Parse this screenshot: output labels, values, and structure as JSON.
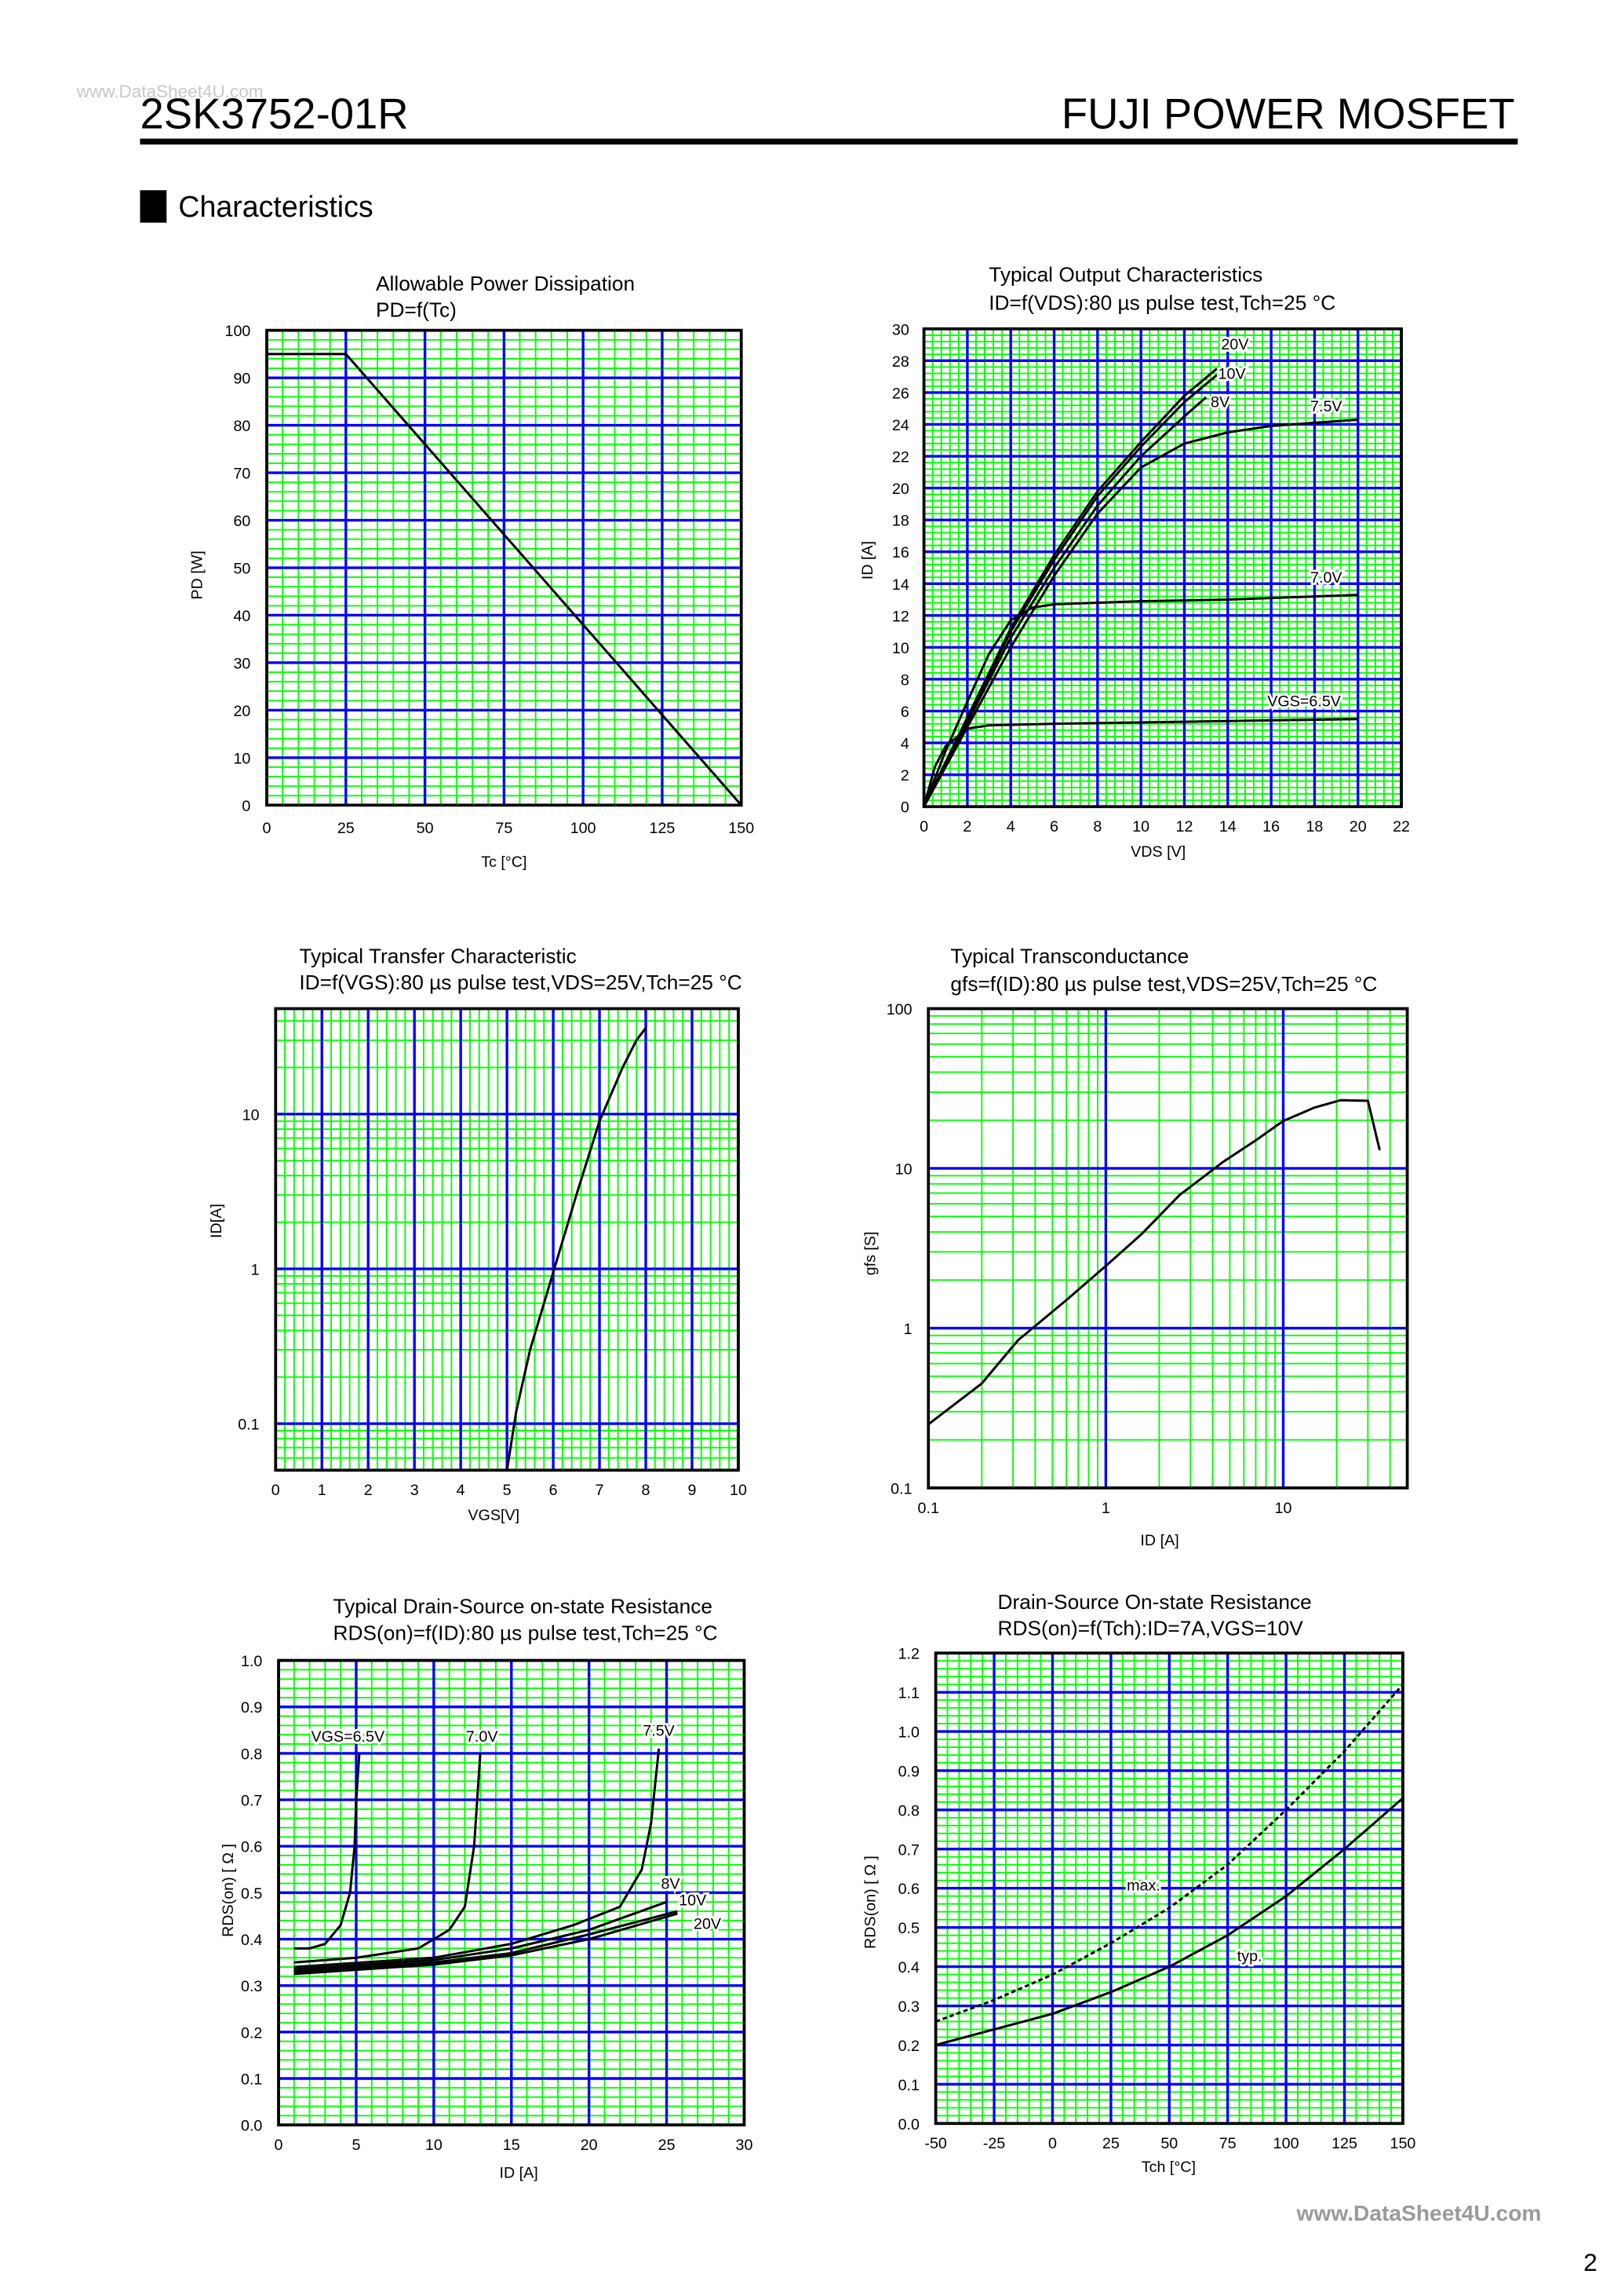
{
  "header": {
    "watermark": "www.DataSheet4U.com",
    "part_number": "2SK3752-01R",
    "product_type": "FUJI POWER MOSFET",
    "section_title": "Characteristics"
  },
  "footer": {
    "watermark": "www.DataSheet4U.com",
    "page_number": "2"
  },
  "colors": {
    "major_grid": "#0000ff",
    "minor_grid": "#00ff00",
    "curve": "#000000"
  },
  "chart_data": [
    {
      "type": "line",
      "title": [
        "Allowable Power Dissipation",
        "PD=f(Tc)"
      ],
      "xlabel": "Tc [°C]",
      "ylabel": "PD [W]",
      "xscale": "linear",
      "yscale": "linear",
      "xlim": [
        0,
        150
      ],
      "ylim": [
        0,
        100
      ],
      "xticks": [
        0,
        25,
        50,
        75,
        100,
        125,
        150
      ],
      "yticks": [
        0,
        10,
        20,
        30,
        40,
        50,
        60,
        70,
        80,
        90,
        100
      ],
      "grid": true,
      "series": [
        {
          "name": "PD",
          "label": "",
          "dashed": false,
          "points": [
            [
              0,
              95
            ],
            [
              25,
              95
            ],
            [
              150,
              0
            ]
          ]
        }
      ]
    },
    {
      "type": "line",
      "title": [
        "Typical Output Characteristics",
        "ID=f(VDS):80 µs pulse test,Tch=25 °C"
      ],
      "xlabel": "VDS [V]",
      "ylabel": "ID [A]",
      "xscale": "linear",
      "yscale": "linear",
      "xlim": [
        0,
        22
      ],
      "ylim": [
        0,
        30
      ],
      "xticks": [
        0,
        2,
        4,
        6,
        8,
        10,
        12,
        14,
        16,
        18,
        20,
        22
      ],
      "yticks": [
        0,
        2,
        4,
        6,
        8,
        10,
        12,
        14,
        16,
        18,
        20,
        22,
        24,
        26,
        28,
        30
      ],
      "grid": true,
      "series": [
        {
          "name": "VGS=20V",
          "label": "20V",
          "dashed": false,
          "points": [
            [
              0,
              0
            ],
            [
              2,
              5.6
            ],
            [
              4,
              11.2
            ],
            [
              6,
              15.8
            ],
            [
              8,
              19.8
            ],
            [
              10,
              22.9
            ],
            [
              12,
              25.8
            ],
            [
              13.5,
              27.5
            ]
          ]
        },
        {
          "name": "VGS=10V",
          "label": "10V",
          "dashed": false,
          "points": [
            [
              0,
              0
            ],
            [
              2,
              5.5
            ],
            [
              4,
              11
            ],
            [
              6,
              15.5
            ],
            [
              8,
              19.5
            ],
            [
              10,
              22.6
            ],
            [
              12,
              25.4
            ],
            [
              13.5,
              27.1
            ]
          ]
        },
        {
          "name": "VGS=8V",
          "label": "8V",
          "dashed": false,
          "points": [
            [
              0,
              0
            ],
            [
              2,
              5.3
            ],
            [
              4,
              10.6
            ],
            [
              6,
              15
            ],
            [
              8,
              18.9
            ],
            [
              10,
              22
            ],
            [
              12,
              24.5
            ],
            [
              13,
              25.7
            ]
          ]
        },
        {
          "name": "VGS=7.5V",
          "label": "7.5V",
          "dashed": false,
          "points": [
            [
              0,
              0
            ],
            [
              2,
              5
            ],
            [
              4,
              10
            ],
            [
              6,
              14.5
            ],
            [
              8,
              18.4
            ],
            [
              10,
              21.3
            ],
            [
              12,
              22.8
            ],
            [
              14,
              23.5
            ],
            [
              16,
              23.9
            ],
            [
              18,
              24.1
            ],
            [
              20,
              24.3
            ]
          ]
        },
        {
          "name": "VGS=7.0V",
          "label": "7.0V",
          "dashed": false,
          "points": [
            [
              0,
              0
            ],
            [
              1,
              3.5
            ],
            [
              2,
              6.6
            ],
            [
              3,
              9.6
            ],
            [
              4,
              11.7
            ],
            [
              5,
              12.5
            ],
            [
              6,
              12.7
            ],
            [
              10,
              12.9
            ],
            [
              14,
              13
            ],
            [
              20,
              13.3
            ]
          ]
        },
        {
          "name": "VGS=6.5V",
          "label": "VGS=6.5V",
          "dashed": false,
          "points": [
            [
              0,
              0
            ],
            [
              0.5,
              2.5
            ],
            [
              1,
              3.8
            ],
            [
              2,
              4.9
            ],
            [
              3,
              5.1
            ],
            [
              6,
              5.2
            ],
            [
              20,
              5.5
            ]
          ]
        }
      ]
    },
    {
      "type": "line",
      "title": [
        "Typical Transfer Characteristic",
        "ID=f(VGS):80 µs pulse test,VDS=25V,Tch=25  °C"
      ],
      "xlabel": "VGS[V]",
      "ylabel": "ID[A]",
      "xscale": "linear",
      "yscale": "log",
      "xlim": [
        0,
        10
      ],
      "ylim": [
        0.05,
        48
      ],
      "xticks": [
        0,
        1,
        2,
        3,
        4,
        5,
        6,
        7,
        8,
        9,
        10
      ],
      "yticks": [
        0.1,
        1,
        10
      ],
      "grid": true,
      "series": [
        {
          "name": "ID",
          "label": "",
          "dashed": false,
          "points": [
            [
              5,
              0.05
            ],
            [
              5.2,
              0.12
            ],
            [
              5.5,
              0.3
            ],
            [
              6,
              0.95
            ],
            [
              6.5,
              3
            ],
            [
              7,
              9
            ],
            [
              7.5,
              20
            ],
            [
              7.8,
              30
            ],
            [
              8,
              36
            ]
          ]
        }
      ]
    },
    {
      "type": "line",
      "title": [
        "Typical Transconductance",
        "gfs=f(ID):80 µs pulse test,VDS=25V,Tch=25  °C"
      ],
      "xlabel": "ID [A]",
      "ylabel": "gfs [S]",
      "xscale": "log",
      "yscale": "log",
      "xlim": [
        0.1,
        50
      ],
      "ylim": [
        0.1,
        100
      ],
      "xticks": [
        0.1,
        1,
        10
      ],
      "yticks": [
        0.1,
        1,
        10,
        100
      ],
      "grid": true,
      "series": [
        {
          "name": "gfs",
          "label": "",
          "dashed": false,
          "points": [
            [
              0.1,
              0.25
            ],
            [
              0.2,
              0.45
            ],
            [
              0.32,
              0.84
            ],
            [
              0.6,
              1.5
            ],
            [
              1,
              2.45
            ],
            [
              1.6,
              3.9
            ],
            [
              2.6,
              6.8
            ],
            [
              4.6,
              11
            ],
            [
              7,
              15
            ],
            [
              10,
              19.8
            ],
            [
              15,
              24
            ],
            [
              21,
              26.7
            ],
            [
              30,
              26.5
            ],
            [
              35,
              13
            ]
          ]
        }
      ]
    },
    {
      "type": "line",
      "title": [
        "Typical Drain-Source on-state Resistance",
        "RDS(on)=f(ID):80  µs pulse test,Tch=25  °C"
      ],
      "xlabel": "ID [A]",
      "ylabel": "RDS(on) [ Ω ]",
      "xscale": "linear",
      "yscale": "linear",
      "xlim": [
        0,
        30
      ],
      "ylim": [
        0,
        1.0
      ],
      "xticks": [
        0,
        5,
        10,
        15,
        20,
        25,
        30
      ],
      "yticks": [
        "0.0",
        "0.1",
        "0.2",
        "0.3",
        "0.4",
        "0.5",
        "0.6",
        "0.7",
        "0.8",
        "0.9",
        "1.0"
      ],
      "grid": true,
      "series": [
        {
          "name": "VGS=6.5V",
          "label": "VGS=6.5V",
          "dashed": false,
          "points": [
            [
              1,
              0.38
            ],
            [
              2,
              0.38
            ],
            [
              3,
              0.39
            ],
            [
              4,
              0.43
            ],
            [
              4.6,
              0.5
            ],
            [
              4.9,
              0.6
            ],
            [
              5,
              0.7
            ],
            [
              5.2,
              0.8
            ]
          ]
        },
        {
          "name": "VGS=7.0V",
          "label": "7.0V",
          "dashed": false,
          "points": [
            [
              1,
              0.35
            ],
            [
              5,
              0.36
            ],
            [
              9,
              0.38
            ],
            [
              11,
              0.42
            ],
            [
              12,
              0.47
            ],
            [
              12.6,
              0.6
            ],
            [
              12.8,
              0.7
            ],
            [
              13,
              0.8
            ]
          ]
        },
        {
          "name": "VGS=7.5V",
          "label": "7.5V",
          "dashed": false,
          "points": [
            [
              1,
              0.34
            ],
            [
              10,
              0.36
            ],
            [
              15,
              0.39
            ],
            [
              19,
              0.43
            ],
            [
              22,
              0.47
            ],
            [
              23.4,
              0.55
            ],
            [
              24,
              0.65
            ],
            [
              24.5,
              0.81
            ]
          ]
        },
        {
          "name": "VGS=8V",
          "label": "8V",
          "dashed": false,
          "points": [
            [
              1,
              0.335
            ],
            [
              10,
              0.355
            ],
            [
              15,
              0.38
            ],
            [
              20,
              0.42
            ],
            [
              25,
              0.48
            ]
          ]
        },
        {
          "name": "VGS=10V",
          "label": "10V",
          "dashed": false,
          "points": [
            [
              1,
              0.33
            ],
            [
              10,
              0.35
            ],
            [
              15,
              0.37
            ],
            [
              20,
              0.41
            ],
            [
              25.7,
              0.46
            ]
          ]
        },
        {
          "name": "VGS=20V",
          "label": "20V",
          "dashed": false,
          "points": [
            [
              1,
              0.325
            ],
            [
              10,
              0.345
            ],
            [
              15,
              0.365
            ],
            [
              20,
              0.4
            ],
            [
              25.7,
              0.455
            ]
          ]
        }
      ]
    },
    {
      "type": "line",
      "title": [
        "Drain-Source On-state Resistance",
        "RDS(on)=f(Tch):ID=7A,VGS=10V"
      ],
      "xlabel": "Tch [°C]",
      "ylabel": "RDS(on) [ Ω ]",
      "xscale": "linear",
      "yscale": "linear",
      "xlim": [
        -50,
        150
      ],
      "ylim": [
        0,
        1.2
      ],
      "xticks": [
        -50,
        -25,
        0,
        25,
        50,
        75,
        100,
        125,
        150
      ],
      "yticks": [
        "0.0",
        "0.1",
        "0.2",
        "0.3",
        "0.4",
        "0.5",
        "0.6",
        "0.7",
        "0.8",
        "0.9",
        "1.0",
        "1.1",
        "1.2"
      ],
      "grid": true,
      "series": [
        {
          "name": "max",
          "label": "max.",
          "dashed": true,
          "points": [
            [
              -50,
              0.26
            ],
            [
              -25,
              0.315
            ],
            [
              0,
              0.38
            ],
            [
              25,
              0.46
            ],
            [
              50,
              0.55
            ],
            [
              75,
              0.66
            ],
            [
              100,
              0.8
            ],
            [
              125,
              0.95
            ],
            [
              150,
              1.12
            ]
          ]
        },
        {
          "name": "typ",
          "label": "typ.",
          "dashed": false,
          "points": [
            [
              -50,
              0.2
            ],
            [
              -25,
              0.24
            ],
            [
              0,
              0.28
            ],
            [
              25,
              0.335
            ],
            [
              50,
              0.4
            ],
            [
              75,
              0.48
            ],
            [
              100,
              0.58
            ],
            [
              125,
              0.7
            ],
            [
              150,
              0.83
            ]
          ]
        }
      ]
    }
  ]
}
